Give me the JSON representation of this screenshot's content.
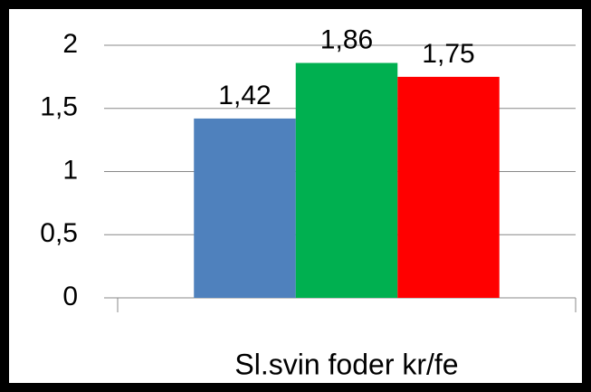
{
  "chart_data": {
    "type": "bar",
    "categories": [
      "Sl.svin foder kr/fe"
    ],
    "series": [
      {
        "color": "#4f81bd",
        "values": [
          1.42
        ],
        "value_labels": [
          "1,42"
        ]
      },
      {
        "color": "#00b050",
        "values": [
          1.86
        ],
        "value_labels": [
          "1,86"
        ]
      },
      {
        "color": "#ff0000",
        "values": [
          1.75
        ],
        "value_labels": [
          "1,75"
        ]
      }
    ],
    "ylim": [
      0,
      2
    ],
    "yticks": [
      0,
      {
        "value": 0.5,
        "label": "0,5"
      },
      1,
      {
        "value": 1.5,
        "label": "1,5"
      },
      2
    ],
    "grid": true
  }
}
